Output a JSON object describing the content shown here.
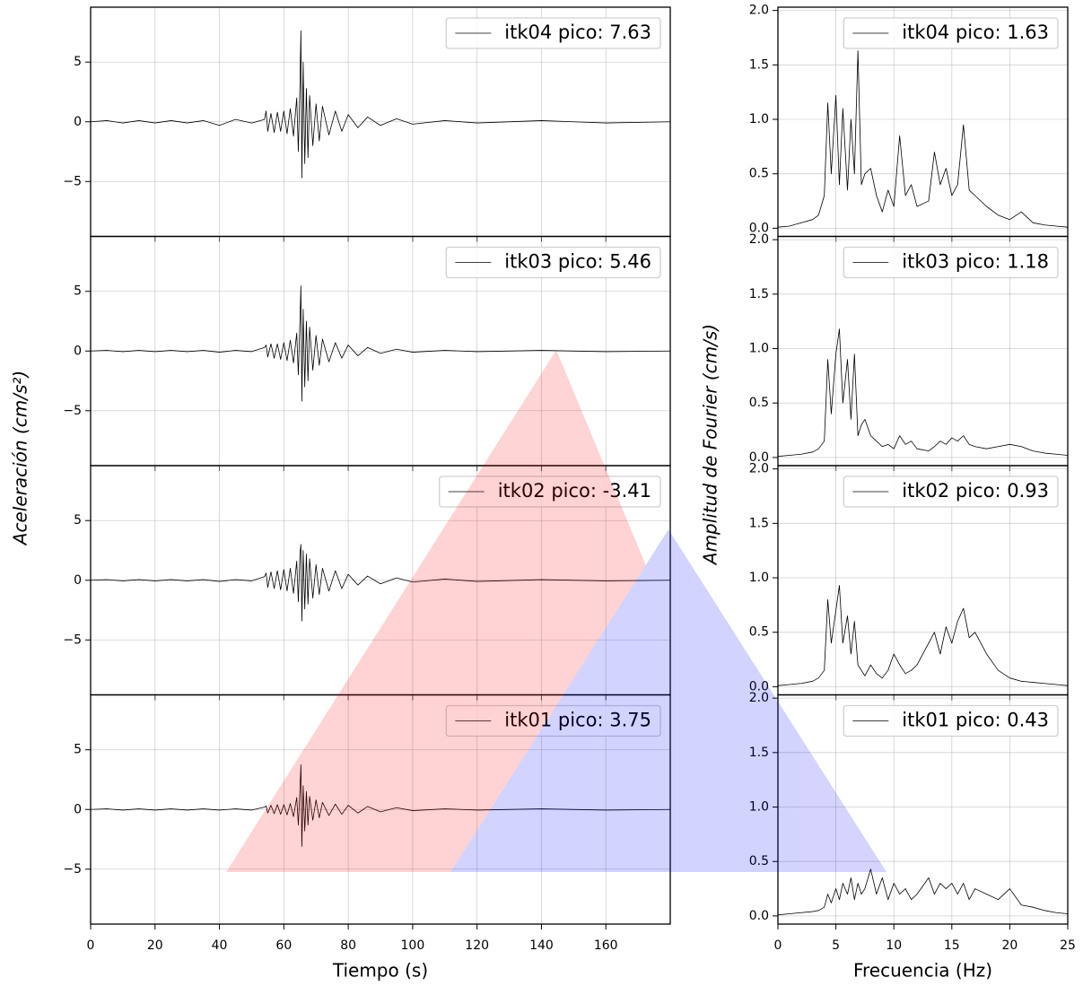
{
  "figure": {
    "left_ylabel": "Aceleración (cm/s²)",
    "right_ylabel": "Amplitud de Fourier (cm/s)"
  },
  "chart_data": [
    {
      "type": "line",
      "x": [
        0,
        5,
        10,
        15,
        20,
        25,
        30,
        35,
        40,
        45,
        50,
        54,
        54.5,
        55,
        56,
        57,
        58,
        59,
        60,
        61,
        62,
        63,
        64,
        64.5,
        65,
        65.3,
        65.6,
        66,
        66.5,
        67,
        67.5,
        68,
        69,
        70,
        71,
        72,
        74,
        76,
        78,
        80,
        83,
        86,
        90,
        95,
        100,
        110,
        120,
        140,
        160,
        180
      ],
      "series": [
        {
          "name": "itk04 pico: 7.63",
          "color": "#000000",
          "values": [
            0,
            0.1,
            -0.1,
            0.1,
            -0.1,
            0.1,
            -0.1,
            0.1,
            -0.3,
            0.2,
            -0.1,
            0.2,
            0.9,
            -0.8,
            0.7,
            -0.9,
            0.8,
            -0.8,
            0.9,
            -1.0,
            1.1,
            -1.2,
            2.0,
            -2.5,
            3.0,
            7.63,
            -4.7,
            5.0,
            -3.5,
            2.8,
            -3.0,
            2.2,
            -2.0,
            1.5,
            -1.6,
            1.3,
            -1.1,
            0.9,
            -0.8,
            0.6,
            -0.5,
            0.4,
            -0.3,
            0.25,
            -0.2,
            0.1,
            -0.1,
            0.1,
            -0.1,
            0
          ]
        }
      ],
      "xlim": [
        0,
        180
      ],
      "ylim": [
        -9.6,
        9.6
      ],
      "xticks": [
        0,
        20,
        40,
        60,
        80,
        100,
        120,
        140,
        160
      ],
      "yticks": [
        {
          "value": -5,
          "label": "−5"
        },
        0,
        5
      ],
      "grid": true,
      "legend": "upper right"
    },
    {
      "type": "line",
      "x": [
        0,
        5,
        10,
        15,
        20,
        25,
        30,
        35,
        40,
        45,
        50,
        54,
        54.5,
        55,
        56,
        57,
        58,
        59,
        60,
        61,
        62,
        63,
        64,
        64.5,
        65,
        65.3,
        65.6,
        66,
        66.5,
        67,
        67.5,
        68,
        69,
        70,
        71,
        72,
        74,
        76,
        78,
        80,
        83,
        86,
        90,
        95,
        100,
        110,
        120,
        140,
        160,
        180
      ],
      "series": [
        {
          "name": "itk03 pico: 5.46",
          "color": "#000000",
          "values": [
            0,
            0.05,
            -0.05,
            0.05,
            -0.05,
            0.05,
            -0.05,
            0.05,
            -0.1,
            0.05,
            -0.05,
            0.3,
            0.5,
            -0.5,
            0.6,
            -0.6,
            0.6,
            -0.7,
            0.7,
            -0.8,
            0.9,
            -1.0,
            1.5,
            -2.0,
            2.5,
            5.46,
            -4.2,
            3.5,
            -3.0,
            2.5,
            -2.5,
            2.0,
            -1.6,
            1.3,
            -1.2,
            1.0,
            -0.9,
            0.7,
            -0.6,
            0.5,
            -0.4,
            0.3,
            -0.2,
            0.15,
            -0.1,
            0.05,
            -0.05,
            0.05,
            -0.05,
            0
          ]
        }
      ],
      "xlim": [
        0,
        180
      ],
      "ylim": [
        -9.6,
        9.6
      ],
      "xticks": [
        0,
        20,
        40,
        60,
        80,
        100,
        120,
        140,
        160
      ],
      "yticks": [
        {
          "value": -5,
          "label": "−5"
        },
        0,
        5
      ],
      "grid": true,
      "legend": "upper right"
    },
    {
      "type": "line",
      "x": [
        0,
        5,
        10,
        15,
        20,
        25,
        30,
        35,
        40,
        45,
        50,
        54,
        54.5,
        55,
        56,
        57,
        58,
        59,
        60,
        61,
        62,
        63,
        64,
        64.5,
        65,
        65.3,
        65.6,
        66,
        66.5,
        67,
        67.5,
        68,
        69,
        70,
        71,
        72,
        74,
        76,
        78,
        80,
        83,
        86,
        90,
        95,
        100,
        110,
        120,
        140,
        160,
        180
      ],
      "series": [
        {
          "name": "itk02 pico: -3.41",
          "color": "#000000",
          "values": [
            0,
            0.05,
            -0.05,
            0.05,
            -0.05,
            0.05,
            -0.05,
            0.05,
            -0.1,
            0.05,
            -0.05,
            0.3,
            0.6,
            -0.6,
            0.7,
            -0.7,
            0.8,
            -0.8,
            0.9,
            -0.9,
            1.0,
            -1.1,
            1.6,
            -1.8,
            2.2,
            3.0,
            -3.41,
            2.5,
            -2.4,
            2.2,
            -2.0,
            1.8,
            -1.5,
            1.3,
            -1.2,
            1.0,
            -0.9,
            0.8,
            -0.7,
            0.5,
            -0.4,
            0.35,
            -0.3,
            0.2,
            -0.15,
            0.1,
            -0.1,
            0.05,
            -0.05,
            0
          ]
        }
      ],
      "xlim": [
        0,
        180
      ],
      "ylim": [
        -9.6,
        9.6
      ],
      "xticks": [
        0,
        20,
        40,
        60,
        80,
        100,
        120,
        140,
        160
      ],
      "yticks": [
        {
          "value": -5,
          "label": "−5"
        },
        0,
        5
      ],
      "grid": true,
      "legend": "upper right"
    },
    {
      "type": "line",
      "x": [
        0,
        5,
        10,
        15,
        20,
        25,
        30,
        35,
        40,
        45,
        50,
        54,
        54.5,
        55,
        56,
        57,
        58,
        59,
        60,
        61,
        62,
        63,
        64,
        64.5,
        65,
        65.3,
        65.6,
        66,
        66.5,
        67,
        67.5,
        68,
        69,
        70,
        71,
        72,
        74,
        76,
        78,
        80,
        83,
        86,
        90,
        95,
        100,
        110,
        120,
        140,
        160,
        180
      ],
      "series": [
        {
          "name": "itk01 pico: 3.75",
          "color": "#000000",
          "values": [
            0,
            0.05,
            -0.05,
            0.05,
            -0.05,
            0.05,
            -0.05,
            0.05,
            -0.05,
            0.05,
            -0.05,
            0.2,
            0.3,
            -0.3,
            0.35,
            -0.35,
            0.4,
            -0.4,
            0.4,
            -0.45,
            0.5,
            -0.6,
            1.0,
            -1.3,
            1.6,
            3.75,
            -3.1,
            2.0,
            -1.8,
            1.5,
            -1.3,
            1.1,
            -0.9,
            0.8,
            -0.7,
            0.6,
            -0.5,
            0.45,
            -0.4,
            0.35,
            -0.3,
            0.25,
            -0.2,
            0.15,
            -0.1,
            0.05,
            -0.05,
            0.05,
            -0.05,
            0
          ]
        }
      ],
      "xlim": [
        0,
        180
      ],
      "ylim": [
        -9.6,
        9.6
      ],
      "xticks": [
        0,
        20,
        40,
        60,
        80,
        100,
        120,
        140,
        160
      ],
      "yticks": [
        {
          "value": -5,
          "label": "−5"
        },
        0,
        5
      ],
      "grid": true,
      "legend": "upper right",
      "xlabel": "Tiempo (s)"
    },
    {
      "type": "line",
      "x": [
        0,
        1,
        2,
        3,
        3.5,
        4,
        4.3,
        4.6,
        5,
        5.3,
        5.6,
        6,
        6.3,
        6.6,
        6.9,
        7.2,
        7.5,
        8,
        8.5,
        9,
        9.5,
        10,
        10.5,
        11,
        11.5,
        12,
        13,
        13.5,
        14,
        14.5,
        15,
        15.5,
        16,
        16.5,
        17,
        18,
        19,
        20,
        21,
        22,
        23,
        24,
        25
      ],
      "series": [
        {
          "name": "itk04 pico: 1.63",
          "color": "#000000",
          "values": [
            0.01,
            0.02,
            0.05,
            0.08,
            0.12,
            0.3,
            1.15,
            0.5,
            1.22,
            0.4,
            1.1,
            0.35,
            1.0,
            0.5,
            1.63,
            0.4,
            0.5,
            0.55,
            0.3,
            0.15,
            0.35,
            0.2,
            0.85,
            0.3,
            0.4,
            0.2,
            0.25,
            0.7,
            0.4,
            0.55,
            0.3,
            0.4,
            0.95,
            0.35,
            0.3,
            0.2,
            0.12,
            0.08,
            0.15,
            0.05,
            0.03,
            0.02,
            0.01
          ]
        }
      ],
      "xlim": [
        0,
        25
      ],
      "ylim": [
        -0.075,
        2.03
      ],
      "xticks": [
        0,
        5,
        10,
        15,
        20,
        25
      ],
      "yticks": [
        {
          "value": 0,
          "label": "0.0"
        },
        {
          "value": 0.5,
          "label": "0.5"
        },
        {
          "value": 1,
          "label": "1.0"
        },
        {
          "value": 1.5,
          "label": "1.5"
        },
        {
          "value": 2,
          "label": "2.0"
        }
      ],
      "grid": true,
      "legend": "upper right"
    },
    {
      "type": "line",
      "x": [
        0,
        1,
        2,
        3,
        3.5,
        4,
        4.3,
        4.6,
        5,
        5.3,
        5.6,
        6,
        6.3,
        6.6,
        6.9,
        7.2,
        7.5,
        8,
        8.5,
        9,
        9.5,
        10,
        10.5,
        11,
        11.5,
        12,
        13,
        13.5,
        14,
        14.5,
        15,
        15.5,
        16,
        16.5,
        17,
        18,
        19,
        20,
        21,
        22,
        23,
        24,
        25
      ],
      "series": [
        {
          "name": "itk03 pico: 1.18",
          "color": "#000000",
          "values": [
            0.01,
            0.02,
            0.03,
            0.05,
            0.08,
            0.15,
            0.9,
            0.4,
            0.95,
            1.18,
            0.5,
            0.9,
            0.35,
            0.95,
            0.2,
            0.3,
            0.35,
            0.2,
            0.15,
            0.1,
            0.12,
            0.08,
            0.2,
            0.12,
            0.15,
            0.08,
            0.06,
            0.1,
            0.15,
            0.12,
            0.18,
            0.15,
            0.2,
            0.12,
            0.1,
            0.08,
            0.1,
            0.12,
            0.1,
            0.06,
            0.04,
            0.03,
            0.02
          ]
        }
      ],
      "xlim": [
        0,
        25
      ],
      "ylim": [
        -0.075,
        2.03
      ],
      "xticks": [
        0,
        5,
        10,
        15,
        20,
        25
      ],
      "yticks": [
        {
          "value": 0,
          "label": "0.0"
        },
        {
          "value": 0.5,
          "label": "0.5"
        },
        {
          "value": 1,
          "label": "1.0"
        },
        {
          "value": 1.5,
          "label": "1.5"
        },
        {
          "value": 2,
          "label": "2.0"
        }
      ],
      "grid": true,
      "legend": "upper right"
    },
    {
      "type": "line",
      "x": [
        0,
        1,
        2,
        3,
        3.5,
        4,
        4.3,
        4.6,
        5,
        5.3,
        5.6,
        6,
        6.3,
        6.6,
        6.9,
        7.2,
        7.5,
        8,
        8.5,
        9,
        9.5,
        10,
        10.5,
        11,
        11.5,
        12,
        13,
        13.5,
        14,
        14.5,
        15,
        15.5,
        16,
        16.5,
        17,
        18,
        19,
        20,
        21,
        22,
        23,
        24,
        25
      ],
      "series": [
        {
          "name": "itk02 pico: 0.93",
          "color": "#000000",
          "values": [
            0.01,
            0.02,
            0.03,
            0.05,
            0.08,
            0.15,
            0.8,
            0.4,
            0.7,
            0.93,
            0.4,
            0.65,
            0.3,
            0.6,
            0.2,
            0.15,
            0.1,
            0.2,
            0.12,
            0.08,
            0.15,
            0.3,
            0.2,
            0.12,
            0.15,
            0.2,
            0.4,
            0.5,
            0.3,
            0.55,
            0.4,
            0.6,
            0.72,
            0.45,
            0.5,
            0.3,
            0.15,
            0.08,
            0.05,
            0.04,
            0.03,
            0.02,
            0.01
          ]
        }
      ],
      "xlim": [
        0,
        25
      ],
      "ylim": [
        -0.075,
        2.03
      ],
      "xticks": [
        0,
        5,
        10,
        15,
        20,
        25
      ],
      "yticks": [
        {
          "value": 0,
          "label": "0.0"
        },
        {
          "value": 0.5,
          "label": "0.5"
        },
        {
          "value": 1,
          "label": "1.0"
        },
        {
          "value": 1.5,
          "label": "1.5"
        },
        {
          "value": 2,
          "label": "2.0"
        }
      ],
      "grid": true,
      "legend": "upper right"
    },
    {
      "type": "line",
      "x": [
        0,
        1,
        2,
        3,
        3.5,
        4,
        4.3,
        4.6,
        5,
        5.3,
        5.6,
        6,
        6.3,
        6.6,
        6.9,
        7.2,
        7.5,
        8,
        8.5,
        9,
        9.5,
        10,
        10.5,
        11,
        11.5,
        12,
        13,
        13.5,
        14,
        14.5,
        15,
        15.5,
        16,
        16.5,
        17,
        18,
        19,
        20,
        21,
        22,
        23,
        24,
        25
      ],
      "series": [
        {
          "name": "itk01 pico: 0.43",
          "color": "#000000",
          "values": [
            0.01,
            0.02,
            0.03,
            0.04,
            0.05,
            0.08,
            0.2,
            0.12,
            0.25,
            0.15,
            0.3,
            0.2,
            0.35,
            0.15,
            0.3,
            0.2,
            0.25,
            0.43,
            0.2,
            0.35,
            0.15,
            0.3,
            0.2,
            0.25,
            0.15,
            0.2,
            0.35,
            0.2,
            0.3,
            0.25,
            0.3,
            0.2,
            0.3,
            0.15,
            0.25,
            0.2,
            0.15,
            0.25,
            0.1,
            0.08,
            0.05,
            0.03,
            0.02
          ]
        }
      ],
      "xlim": [
        0,
        25
      ],
      "ylim": [
        -0.075,
        2.03
      ],
      "xticks": [
        0,
        5,
        10,
        15,
        20,
        25
      ],
      "yticks": [
        {
          "value": 0,
          "label": "0.0"
        },
        {
          "value": 0.5,
          "label": "0.5"
        },
        {
          "value": 1,
          "label": "1.0"
        },
        {
          "value": 1.5,
          "label": "1.5"
        },
        {
          "value": 2,
          "label": "2.0"
        }
      ],
      "grid": true,
      "legend": "upper right",
      "xlabel": "Frecuencia (Hz)"
    }
  ]
}
